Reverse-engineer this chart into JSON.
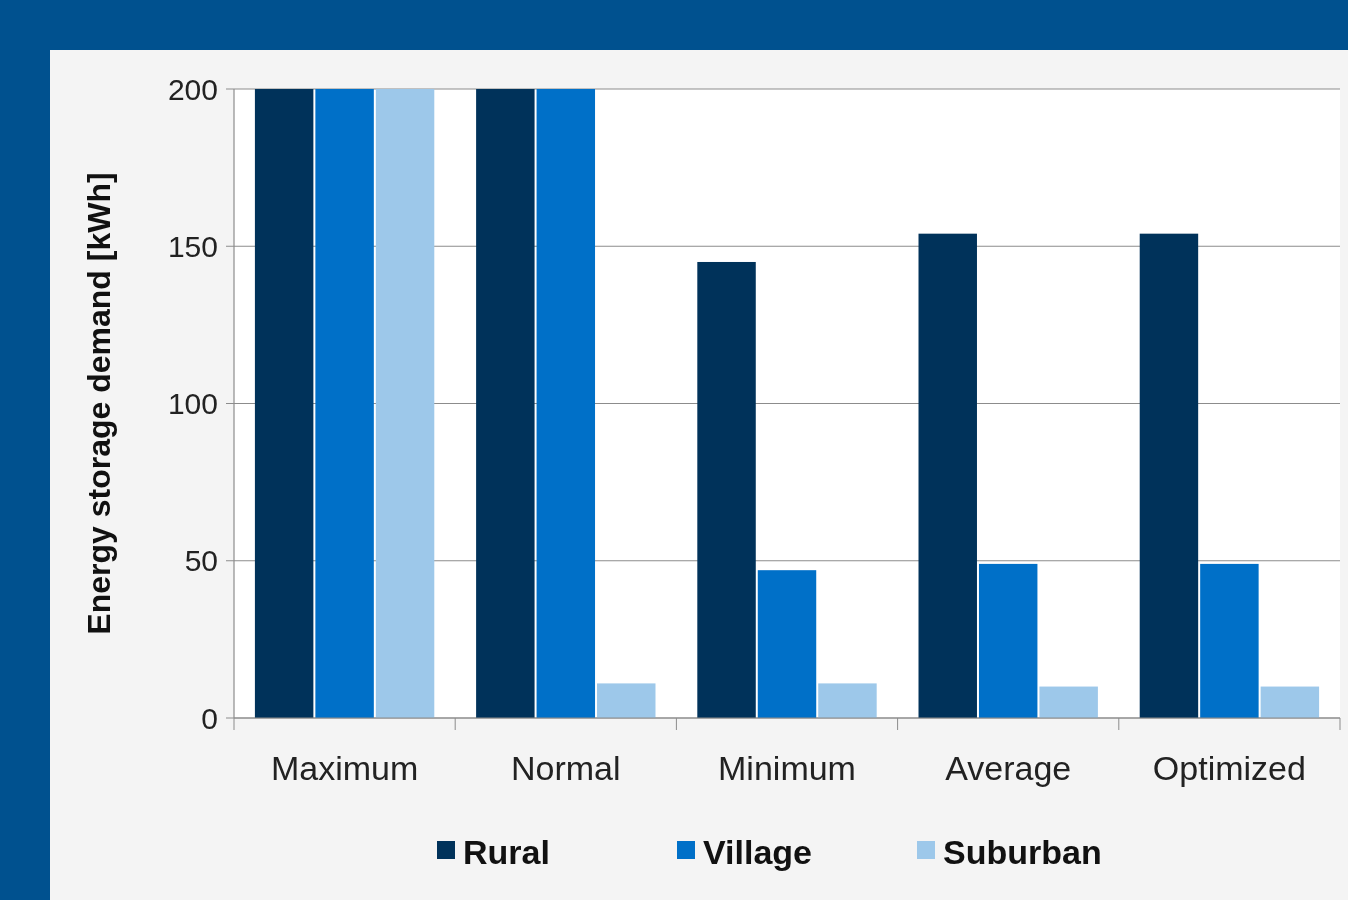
{
  "chart_data": {
    "type": "bar",
    "ylabel": "Energy storage demand  [kWh]",
    "categories": [
      "Maximum",
      "Normal",
      "Minimum",
      "Average",
      "Optimized"
    ],
    "series": [
      {
        "name": "Rural",
        "color": "#00325a",
        "values": [
          200,
          200,
          145,
          154,
          154
        ]
      },
      {
        "name": "Village",
        "color": "#0070c8",
        "values": [
          200,
          200,
          47,
          49,
          49
        ]
      },
      {
        "name": "Suburban",
        "color": "#9dc8ea",
        "values": [
          200,
          11,
          11,
          10,
          10
        ]
      }
    ],
    "ylim": [
      0,
      200
    ],
    "yticks": [
      0,
      50,
      100,
      150,
      200
    ],
    "grid": "y",
    "legend": "bottom"
  }
}
